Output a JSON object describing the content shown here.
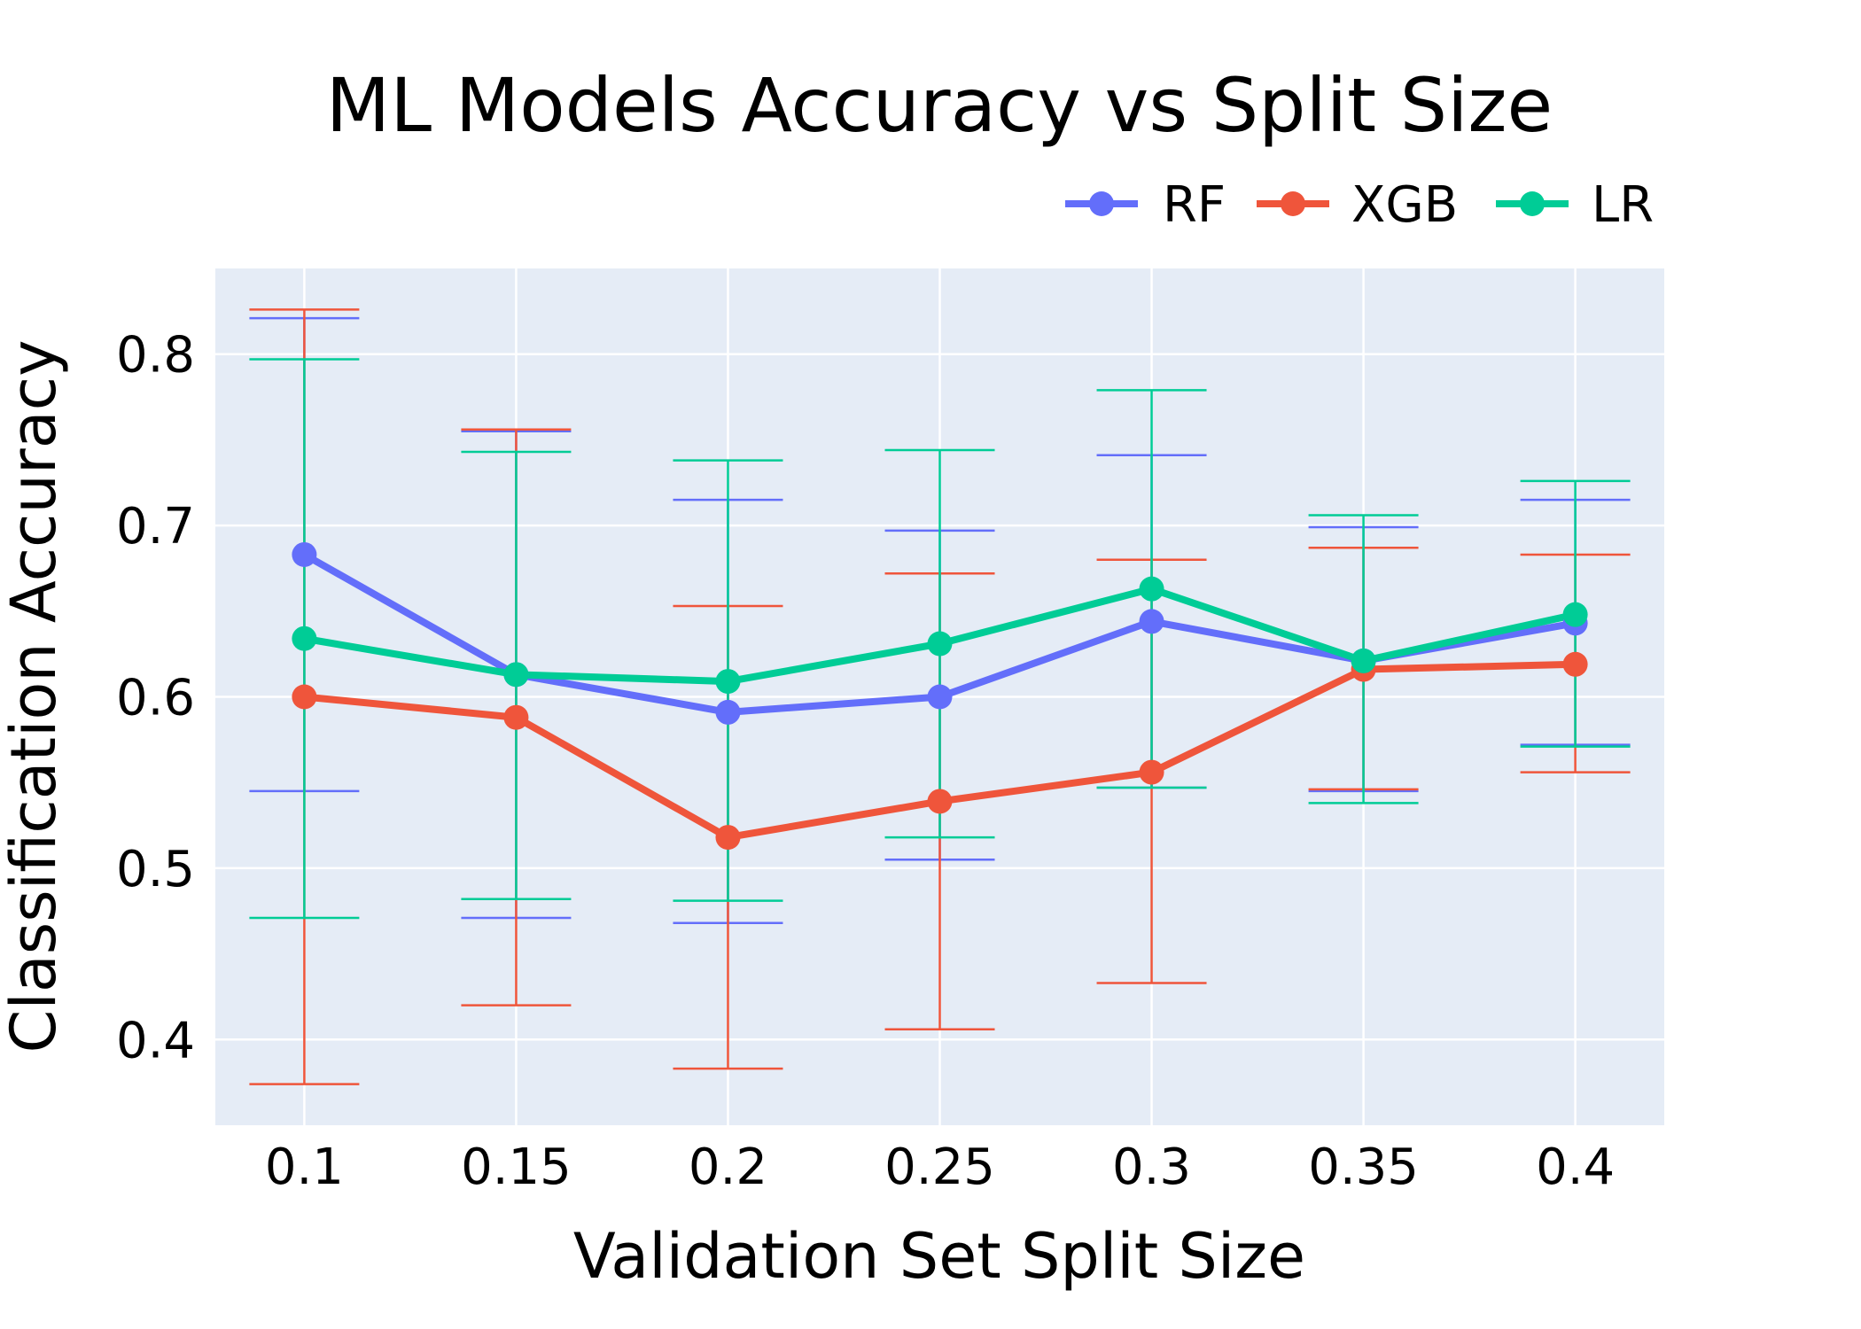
{
  "chart_data": {
    "type": "line",
    "title": "ML Models Accuracy vs Split Size",
    "xlabel": "Validation Set Split Size",
    "ylabel": "Classification Accuracy",
    "x": [
      0.1,
      0.15,
      0.2,
      0.25,
      0.3,
      0.35,
      0.4
    ],
    "x_tick_labels": [
      "0.1",
      "0.15",
      "0.2",
      "0.25",
      "0.3",
      "0.35",
      "0.4"
    ],
    "yticks": [
      0.4,
      0.5,
      0.6,
      0.7,
      0.8
    ],
    "y_tick_labels": [
      "0.4",
      "0.5",
      "0.6",
      "0.7",
      "0.8"
    ],
    "xlim": [
      0.079,
      0.421
    ],
    "ylim": [
      0.35,
      0.85
    ],
    "grid": true,
    "legend_placement": "top-right",
    "plot_background": "#E5ECF6",
    "series": [
      {
        "name": "RF",
        "color": "#636EFA",
        "values": [
          0.683,
          0.613,
          0.591,
          0.6,
          0.644,
          0.621,
          0.643
        ],
        "error_lower": [
          0.545,
          0.471,
          0.468,
          0.505,
          0.547,
          0.545,
          0.572
        ],
        "error_upper": [
          0.821,
          0.755,
          0.715,
          0.697,
          0.741,
          0.699,
          0.715
        ]
      },
      {
        "name": "XGB",
        "color": "#EF553B",
        "values": [
          0.6,
          0.588,
          0.518,
          0.539,
          0.556,
          0.616,
          0.619
        ],
        "error_lower": [
          0.374,
          0.42,
          0.383,
          0.406,
          0.433,
          0.546,
          0.556
        ],
        "error_upper": [
          0.826,
          0.756,
          0.653,
          0.672,
          0.68,
          0.687,
          0.683
        ]
      },
      {
        "name": "LR",
        "color": "#00CC96",
        "values": [
          0.634,
          0.613,
          0.609,
          0.631,
          0.663,
          0.621,
          0.648
        ],
        "error_lower": [
          0.471,
          0.482,
          0.481,
          0.518,
          0.547,
          0.538,
          0.571
        ],
        "error_upper": [
          0.797,
          0.743,
          0.738,
          0.744,
          0.779,
          0.706,
          0.726
        ]
      }
    ]
  }
}
